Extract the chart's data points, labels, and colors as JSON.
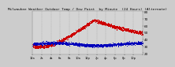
{
  "title": "Milwaukee Weather Outdoor Temp / Dew Point  by Minute  (24 Hours) (Alternate)",
  "title_fontsize": 3.2,
  "background_color": "#cccccc",
  "plot_bg_color": "#d4d4d4",
  "ylim": [
    18,
    82
  ],
  "yticks": [
    20,
    30,
    40,
    50,
    60,
    70,
    80
  ],
  "ylabel_fontsize": 3.0,
  "xlabel_fontsize": 2.6,
  "temp_color": "#cc0000",
  "dew_color": "#0000bb",
  "grid_color": "#999999",
  "num_points": 1440,
  "temp_night_start": 30,
  "temp_morning_low": 28,
  "temp_morning_low_time": 60,
  "temp_rise_start": 200,
  "temp_peak": 68,
  "temp_peak_time": 810,
  "temp_end": 48,
  "dew_base": 32,
  "dew_variation": 4,
  "noise_temp": 1.2,
  "noise_dew": 1.0,
  "marker_size": 0.5,
  "xtick_positions": [
    0,
    120,
    240,
    360,
    480,
    600,
    720,
    840,
    960,
    1080,
    1200,
    1320,
    1439
  ],
  "xtick_labels": [
    "12a",
    "2a",
    "4a",
    "6a",
    "8a",
    "10a",
    "12p",
    "2p",
    "4p",
    "6p",
    "8p",
    "10p",
    ""
  ],
  "grid_positions": [
    0,
    120,
    240,
    360,
    480,
    600,
    720,
    840,
    960,
    1080,
    1200,
    1320
  ]
}
